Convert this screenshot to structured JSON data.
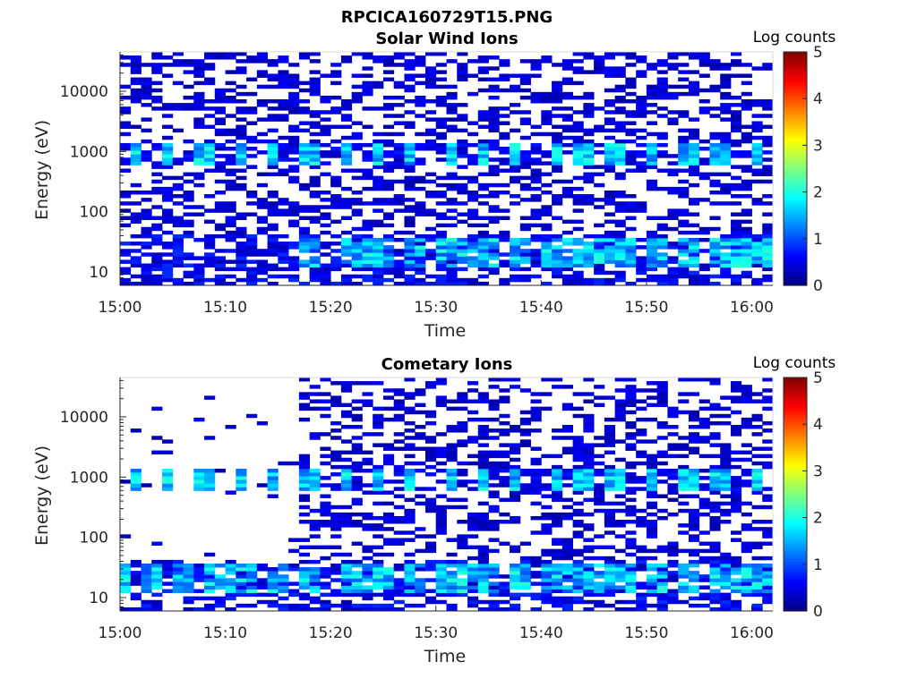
{
  "figure": {
    "title": "RPCICA160729T15.PNG"
  },
  "chart_data": [
    {
      "type": "heatmap",
      "title": "Solar Wind Ions",
      "xlabel": "Time",
      "ylabel": "Energy (eV)",
      "x_ticks": [
        "15:00",
        "15:10",
        "15:20",
        "15:30",
        "15:40",
        "15:50",
        "16:00"
      ],
      "y_ticks": [
        "10",
        "100",
        "1000",
        "10000"
      ],
      "y_scale": "log",
      "ylim": [
        6,
        45000
      ],
      "xlim": [
        "15:00",
        "16:02"
      ],
      "colorbar": {
        "label": "Log counts",
        "ticks": [
          "0",
          "1",
          "2",
          "3",
          "4",
          "5"
        ],
        "range": [
          0,
          5
        ],
        "colormap": "jet"
      },
      "features": {
        "band_1000eV_bursts_min": [
          1.5,
          4.5,
          8,
          11.5,
          14.5,
          17.7,
          21.5,
          24.5,
          27.5,
          31.5,
          34.5,
          37.5,
          41.5,
          44,
          47,
          50.5,
          54,
          57,
          60.5
        ],
        "low_energy_bursts_min": [
          18,
          22.5,
          25,
          28,
          31.5,
          34.5,
          38,
          41.5,
          44.5,
          47.5,
          51,
          54,
          57.5,
          60.5
        ],
        "quiet_before_min": 0
      }
    },
    {
      "type": "heatmap",
      "title": "Cometary Ions",
      "xlabel": "Time",
      "ylabel": "Energy (eV)",
      "x_ticks": [
        "15:00",
        "15:10",
        "15:20",
        "15:30",
        "15:40",
        "15:50",
        "16:00"
      ],
      "y_ticks": [
        "10",
        "100",
        "1000",
        "10000"
      ],
      "y_scale": "log",
      "ylim": [
        6,
        45000
      ],
      "xlim": [
        "15:00",
        "16:02"
      ],
      "colorbar": {
        "label": "Log counts",
        "ticks": [
          "0",
          "1",
          "2",
          "3",
          "4",
          "5"
        ],
        "range": [
          0,
          5
        ],
        "colormap": "jet"
      },
      "features": {
        "band_1000eV_bursts_min": [
          1.5,
          4.5,
          8,
          11.5,
          14.5,
          17.7,
          21.5,
          24.5,
          27.5,
          31.5,
          34.5,
          37.5,
          41.5,
          44,
          47,
          50.5,
          54,
          57,
          60.5
        ],
        "low_energy_bursts_min": [
          0,
          3,
          6,
          9.5,
          12,
          15,
          18,
          22.5,
          25,
          28,
          31.5,
          34.5,
          38,
          41.5,
          44.5,
          47.5,
          51,
          54,
          57.5,
          60.5
        ],
        "quiet_before_min": 17
      }
    }
  ]
}
